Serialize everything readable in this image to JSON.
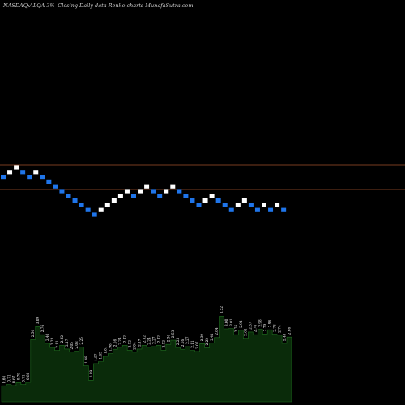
{
  "header": {
    "ticker": "NASDAQ:ALQA",
    "change": "3%",
    "description": "Closing Daily data Renko charts MunafaSutra.com"
  },
  "colors": {
    "background": "#000000",
    "up_brick": "#ffffff",
    "down_brick": "#1f75ea",
    "reference_line": "#a0522d",
    "volume_fill": "#0a2b0a",
    "volume_stroke": "#1f6e1f"
  },
  "chart_data": [
    {
      "type": "renko",
      "brick_direction": [
        "down",
        "up",
        "up",
        "down",
        "down",
        "up",
        "down",
        "down",
        "down",
        "down",
        "down",
        "down",
        "down",
        "down",
        "down",
        "up",
        "up",
        "up",
        "up",
        "up",
        "down",
        "up",
        "up",
        "down",
        "down",
        "up",
        "up",
        "down",
        "down",
        "down",
        "down",
        "up",
        "up",
        "down",
        "down",
        "down",
        "up",
        "up",
        "down",
        "down",
        "up",
        "down",
        "up",
        "down"
      ],
      "reference_lines": 2,
      "grid": false
    },
    {
      "type": "area",
      "name": "volume",
      "labels": [
        "0.66",
        "0.71",
        "0.67",
        "0.79",
        "0.71",
        "0.80",
        "2.56",
        "3.09",
        "2.76",
        "2.40",
        "2.23",
        "2.11",
        "2.32",
        "2.17",
        "2.05",
        "2.08",
        "2.25",
        "1.48",
        "0.89",
        "1.57",
        "1.65",
        "1.87",
        "1.98",
        "2.16",
        "2.24",
        "2.32",
        "2.12",
        "2.04",
        "2.17",
        "2.32",
        "2.24",
        "2.27",
        "2.32",
        "2.12",
        "2.36",
        "2.53",
        "2.23",
        "2.16",
        "2.27",
        "2.11",
        "2.07",
        "2.39",
        "2.22",
        "2.41",
        "2.64",
        "3.52",
        "3.00",
        "3.01",
        "2.76",
        "2.94",
        "2.61",
        "2.87",
        "2.76",
        "2.98",
        "2.79",
        "2.96",
        "2.78",
        "2.74",
        "2.40",
        "2.66"
      ]
    }
  ]
}
